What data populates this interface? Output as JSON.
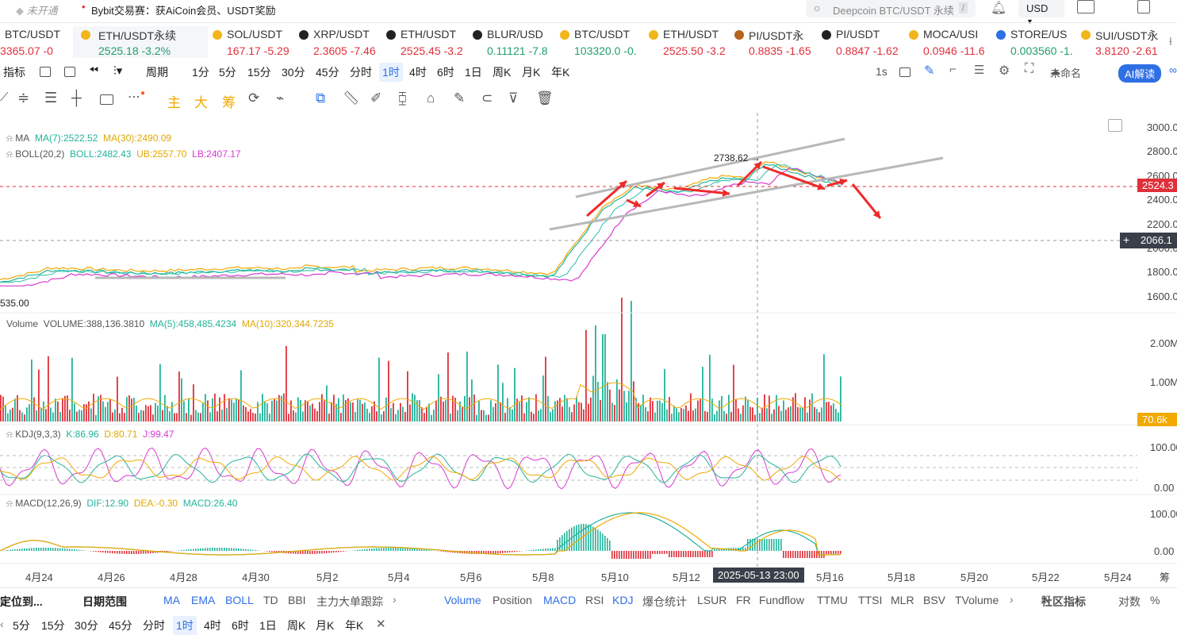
{
  "topbar": {
    "status": "未开通",
    "promo": "Bybit交易赛：获AiCoin会员、USDT奖励",
    "search_placeholder": "Deepcoin BTC/USDT 永续",
    "search_shortcut": "/",
    "currency": "USD"
  },
  "tickers": [
    {
      "name": "BTC/USDT",
      "price": "3365.07 -0"
    },
    {
      "name": "ETH/USDT永续",
      "price": "2525.18 -3.2%",
      "active": true
    },
    {
      "name": "SOL/USDT",
      "price": "167.17 -5.29"
    },
    {
      "name": "XRP/USDT",
      "price": "2.3605 -7.46"
    },
    {
      "name": "ETH/USDT",
      "price": "2525.45 -3.2"
    },
    {
      "name": "BLUR/USD",
      "price": "0.11121 -7.8"
    },
    {
      "name": "BTC/USDT",
      "price": "103320.0 -0."
    },
    {
      "name": "ETH/USDT",
      "price": "2525.50 -3.2"
    },
    {
      "name": "PI/USDT永",
      "price": "0.8835 -1.65"
    },
    {
      "name": "PI/USDT",
      "price": "0.8847 -1.62"
    },
    {
      "name": "MOCA/USI",
      "price": "0.0946 -11.6"
    },
    {
      "name": "STORE/US",
      "price": "0.003560 -1."
    },
    {
      "name": "SUI/USDT永",
      "price": "3.8120 -2.61"
    }
  ],
  "toolbar1": {
    "indicators": "指标",
    "period": "周期",
    "intervals": [
      "1分",
      "5分",
      "15分",
      "30分",
      "45分",
      "分时",
      "1时",
      "4时",
      "6时",
      "1日",
      "周K",
      "月K",
      "年K"
    ],
    "active_interval": "1时",
    "speed": "1s",
    "layout_name": "未命名",
    "ai": "AI解读"
  },
  "toolbar2": {
    "main": "主",
    "big": "大",
    "chip": "筹"
  },
  "legend": {
    "ma": {
      "name": "MA",
      "ma7": "MA(7):2522.52",
      "ma30": "MA(30):2490.09"
    },
    "boll": {
      "name": "BOLL(20,2)",
      "boll": "BOLL:2482.43",
      "ub": "UB:2557.70",
      "lb": "LB:2407.17"
    },
    "volume": {
      "name": "Volume",
      "vol": "VOLUME:388,136.3810",
      "ma5": "MA(5):458,485.4234",
      "ma10": "MA(10):320,344.7235"
    },
    "kdj": {
      "name": "KDJ(9,3,3)",
      "k": "K:86.96",
      "d": "D:80.71",
      "j": "J:99.47"
    },
    "macd": {
      "name": "MACD(12,26,9)",
      "dif": "DIF:12.90",
      "dea": "DEA:-0.30",
      "macd": "MACD:26.40"
    }
  },
  "price_axis": [
    "3000.0",
    "2800.0",
    "2600.0",
    "2400.0",
    "2200.0",
    "2000.0",
    "1800.0",
    "1600.0"
  ],
  "price_labels": {
    "current": "2524.3",
    "cross": "2066.1",
    "high": "2738.62",
    "low": "535.00"
  },
  "volume_axis": [
    "2.00M",
    "1.00M"
  ],
  "volume_label": "70.6k",
  "kdj_axis": [
    "100.00",
    "0.00"
  ],
  "macd_axis": [
    "100.00",
    "0.00"
  ],
  "date_axis": [
    "4月24",
    "4月26",
    "4月28",
    "4月30",
    "5月2",
    "5月4",
    "5月6",
    "5月8",
    "5月10",
    "5月12",
    "5月16",
    "5月18",
    "5月20",
    "5月22",
    "5月24",
    "筹"
  ],
  "crosshair_time": "2025-05-13 23:00",
  "bottom": {
    "locate": "定位到...",
    "range": "日期范围",
    "main_inds": [
      "MA",
      "EMA",
      "BOLL",
      "TD",
      "BBI",
      "主力大单跟踪"
    ],
    "sub_inds": [
      "Volume",
      "Position",
      "MACD",
      "RSI",
      "KDJ",
      "爆仓统计",
      "LSUR",
      "FR",
      "Fundflow",
      "TTMU",
      "TTSI",
      "MLR",
      "BSV",
      "TVolume"
    ],
    "community": "社区指标",
    "log": "对数",
    "percent": "%"
  },
  "bottom2": {
    "intervals": [
      "5分",
      "15分",
      "30分",
      "45分",
      "分时",
      "1时",
      "4时",
      "6时",
      "1日",
      "周K",
      "月K",
      "年K"
    ],
    "active": "1时"
  },
  "colors": {
    "up": "#22b39b",
    "down": "#e0303a",
    "ma7": "#f2a900",
    "ma30": "#f2a900",
    "boll": "#28c0a8",
    "lb": "#d63ad0",
    "accent": "#2f6fe4"
  }
}
